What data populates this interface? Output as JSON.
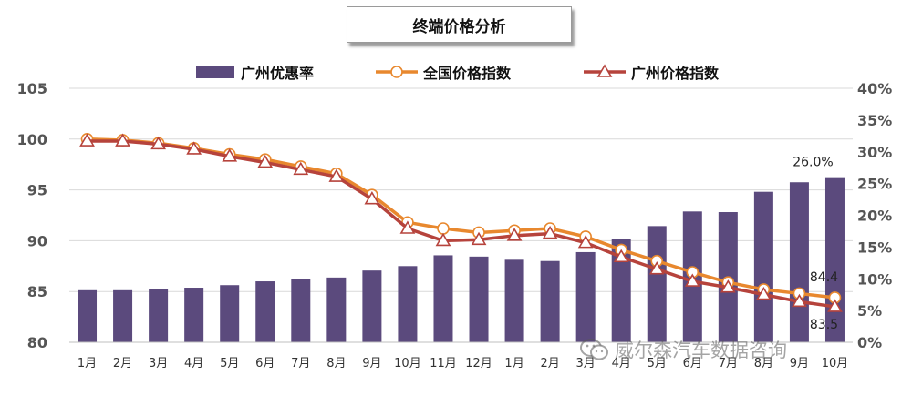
{
  "header": {
    "title": "终端价格分析"
  },
  "watermark": {
    "text": "威尔森汽车数据咨询"
  },
  "colors": {
    "bar": "#5b4a7d",
    "national": "#e8882e",
    "guangzhou": "#b6433c",
    "grid": "#d9d9d9",
    "marker_fill": "#ffffff"
  },
  "chart_data": {
    "type": "bar",
    "title": "终端价格分析",
    "categories": [
      "1月",
      "2月",
      "3月",
      "4月",
      "5月",
      "6月",
      "7月",
      "8月",
      "9月",
      "10月",
      "11月",
      "12月",
      "1月",
      "2月",
      "3月",
      "4月",
      "5月",
      "6月",
      "7月",
      "8月",
      "9月",
      "10月"
    ],
    "left_axis": {
      "ylim": [
        80,
        105
      ],
      "ticks": [
        "80",
        "85",
        "90",
        "95",
        "100",
        "105"
      ]
    },
    "right_axis": {
      "ylim": [
        0,
        40
      ],
      "ticks": [
        "0%",
        "5%",
        "10%",
        "15%",
        "20%",
        "25%",
        "30%",
        "35%",
        "40%"
      ]
    },
    "series": [
      {
        "name": "广州优惠率",
        "type": "bar",
        "axis": "right",
        "values": [
          8.2,
          8.2,
          8.4,
          8.6,
          9.0,
          9.6,
          10.0,
          10.2,
          11.3,
          12.0,
          13.7,
          13.5,
          13.0,
          12.8,
          14.2,
          16.3,
          18.3,
          20.6,
          20.5,
          23.7,
          25.2,
          26.0
        ]
      },
      {
        "name": "全国价格指数",
        "type": "line",
        "axis": "left",
        "marker": "circle",
        "values": [
          100.0,
          99.9,
          99.6,
          99.1,
          98.5,
          98.0,
          97.3,
          96.6,
          94.5,
          91.8,
          91.2,
          90.8,
          91.0,
          91.2,
          90.4,
          89.1,
          88.0,
          86.9,
          85.9,
          85.2,
          84.8,
          84.4
        ]
      },
      {
        "name": "广州价格指数",
        "type": "line",
        "axis": "left",
        "marker": "triangle",
        "values": [
          99.8,
          99.8,
          99.5,
          99.0,
          98.3,
          97.7,
          97.0,
          96.3,
          94.1,
          91.2,
          90.0,
          90.1,
          90.5,
          90.7,
          89.8,
          88.4,
          87.2,
          86.0,
          85.4,
          84.7,
          84.0,
          83.5
        ]
      }
    ],
    "data_labels": {
      "bar_last": "26.0%",
      "national_last": "84.4",
      "guangzhou_last": "83.5"
    },
    "legend": {
      "position": "top"
    }
  }
}
